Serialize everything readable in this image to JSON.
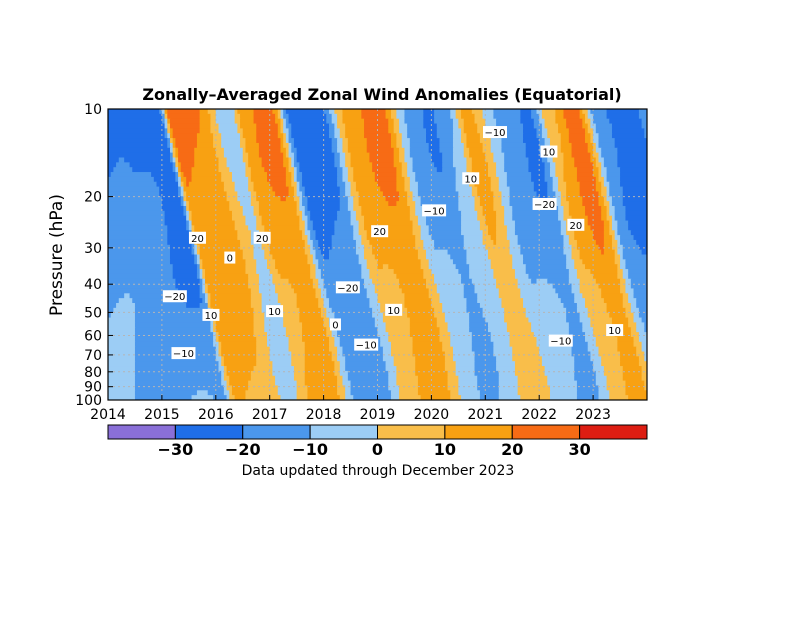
{
  "chart_data": {
    "type": "heatmap",
    "title": "Zonally–Averaged Zonal Wind Anomalies (Equatorial)",
    "ylabel": "Pressure (hPa)",
    "xlabel": "",
    "footer": "Data updated through December 2023",
    "x_ticks": [
      "2014",
      "2015",
      "2016",
      "2017",
      "2018",
      "2019",
      "2020",
      "2021",
      "2022",
      "2023"
    ],
    "y_ticks": [
      10,
      20,
      30,
      40,
      50,
      60,
      70,
      80,
      90,
      100
    ],
    "y_scale": "log",
    "y_inverted": true,
    "xlim": [
      2014.0,
      2024.0
    ],
    "ylim": [
      10,
      100
    ],
    "grid": true,
    "contour_interval": 10,
    "colorbar": {
      "levels": [
        -40,
        -30,
        -20,
        -10,
        0,
        10,
        20,
        30,
        40
      ],
      "tick_labels": [
        "−30",
        "−20",
        "−10",
        "0",
        "10",
        "20",
        "30"
      ],
      "tick_values": [
        -30,
        -20,
        -10,
        0,
        10,
        20,
        30
      ],
      "colors": [
        "#8a6fd8",
        "#1f6ee8",
        "#4b97ec",
        "#9ccdf5",
        "#f9be4a",
        "#f8a112",
        "#f76b15",
        "#dd1d12"
      ]
    },
    "contour_labels": [
      {
        "text": "−10",
        "year": 2021.18,
        "p": 12.0
      },
      {
        "text": "10",
        "year": 2022.18,
        "p": 14.0
      },
      {
        "text": "10",
        "year": 2020.73,
        "p": 17.3
      },
      {
        "text": "−20",
        "year": 2022.1,
        "p": 21.2
      },
      {
        "text": "−10",
        "year": 2020.05,
        "p": 22.3
      },
      {
        "text": "20",
        "year": 2015.66,
        "p": 27.7
      },
      {
        "text": "20",
        "year": 2016.86,
        "p": 27.7
      },
      {
        "text": "20",
        "year": 2019.04,
        "p": 26.3
      },
      {
        "text": "20",
        "year": 2022.68,
        "p": 25.0
      },
      {
        "text": "0",
        "year": 2016.26,
        "p": 32.4
      },
      {
        "text": "−20",
        "year": 2015.24,
        "p": 44.0
      },
      {
        "text": "−20",
        "year": 2018.45,
        "p": 41.0
      },
      {
        "text": "10",
        "year": 2015.91,
        "p": 51.0
      },
      {
        "text": "10",
        "year": 2017.09,
        "p": 49.5
      },
      {
        "text": "10",
        "year": 2019.3,
        "p": 49.0
      },
      {
        "text": "0",
        "year": 2018.22,
        "p": 55.0
      },
      {
        "text": "10",
        "year": 2023.4,
        "p": 57.5
      },
      {
        "text": "−10",
        "year": 2015.4,
        "p": 69.0
      },
      {
        "text": "−10",
        "year": 2018.79,
        "p": 64.5
      },
      {
        "text": "−10",
        "year": 2022.4,
        "p": 62.5
      }
    ]
  }
}
